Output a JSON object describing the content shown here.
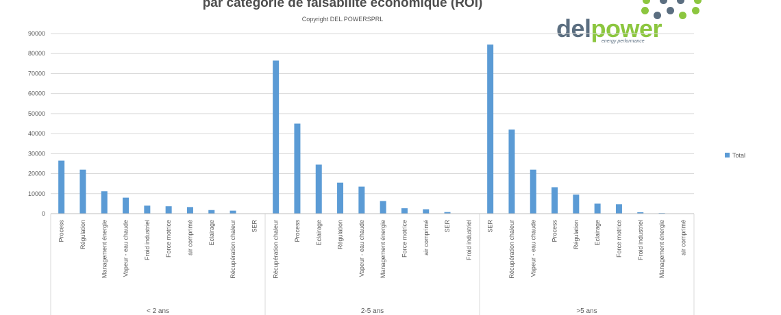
{
  "header": {
    "title": "par catégorie de faisabilité économique (ROI)",
    "subtitle": "Copyright DEL.POWERSPRL"
  },
  "logo": {
    "word_part1": "del",
    "word_part2": "power",
    "tagline": "energy performance",
    "dot_colors": [
      "#8cc63f",
      "#5b6e80"
    ]
  },
  "chart_data": {
    "type": "bar",
    "ylim": [
      0,
      90000
    ],
    "yticks": [
      0,
      10000,
      20000,
      30000,
      40000,
      50000,
      60000,
      70000,
      80000,
      90000
    ],
    "grid": true,
    "legend_position": "right",
    "bar_color": "#5b9bd5",
    "series": [
      {
        "name": "Total"
      }
    ],
    "groups": [
      {
        "label": "< 2 ans",
        "categories": [
          "Process",
          "Régulation",
          "Management énergie",
          "Vapeur - eau chaude",
          "Froid industriel",
          "Force motrice",
          "air comprimé",
          "Eclairage",
          "Récupération chaleur",
          "SER"
        ],
        "values": [
          26500,
          22000,
          11200,
          8000,
          4000,
          3700,
          3300,
          1800,
          1500,
          0
        ]
      },
      {
        "label": "2-5 ans",
        "categories": [
          "Récupération chaleur",
          "Process",
          "Eclairage",
          "Régulation",
          "Vapeur - eau chaude",
          "Management énergie",
          "Force motrice",
          "air comprimé",
          "SER",
          "Froid industriel"
        ],
        "values": [
          76500,
          45000,
          24500,
          15500,
          13500,
          6300,
          2700,
          2200,
          800,
          0
        ]
      },
      {
        "label": ">5 ans",
        "categories": [
          "SER",
          "Récupération chaleur",
          "Vapeur - eau chaude",
          "Process",
          "Régulation",
          "Eclairage",
          "Force motrice",
          "Froid industriel",
          "Management énergie",
          "air comprimé"
        ],
        "values": [
          84500,
          42000,
          22000,
          13200,
          9500,
          5000,
          4700,
          700,
          300,
          0
        ]
      }
    ]
  }
}
